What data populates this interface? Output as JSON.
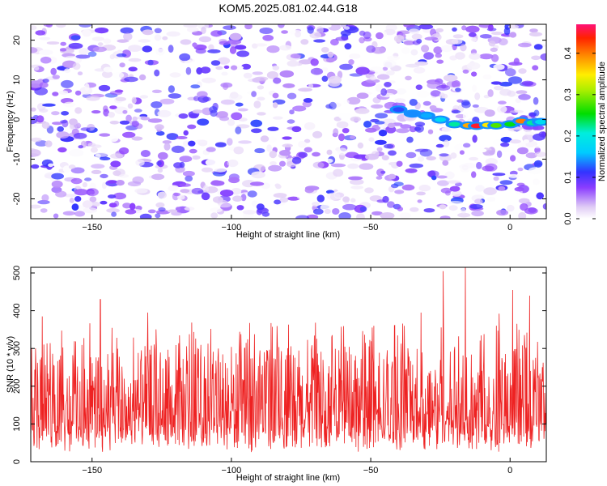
{
  "title": "KOM5.2025.081.02.44.G18",
  "chart_data": [
    {
      "type": "heatmap",
      "xlabel": "Height of straight line (km)",
      "ylabel": "Frequency (Hz)",
      "xlim": [
        -172,
        13
      ],
      "ylim": [
        -25,
        24
      ],
      "xticks": [
        -150,
        -100,
        -50,
        0
      ],
      "yticks": [
        -20,
        -10,
        0,
        10,
        20
      ],
      "colorbar": {
        "label": "Normalized spectral amplitude",
        "range": [
          0,
          0.47
        ],
        "ticks": [
          0.0,
          0.1,
          0.2,
          0.3,
          0.4
        ]
      },
      "signal_track": [
        {
          "x": -40,
          "y": 2.5,
          "amp": 0.12
        },
        {
          "x": -35,
          "y": 1.5,
          "amp": 0.14
        },
        {
          "x": -30,
          "y": 1.0,
          "amp": 0.15
        },
        {
          "x": -25,
          "y": 0.0,
          "amp": 0.18
        },
        {
          "x": -20,
          "y": -1.2,
          "amp": 0.22
        },
        {
          "x": -15,
          "y": -1.5,
          "amp": 0.38
        },
        {
          "x": -12,
          "y": -1.6,
          "amp": 0.45
        },
        {
          "x": -8,
          "y": -1.4,
          "amp": 0.35
        },
        {
          "x": -5,
          "y": -1.5,
          "amp": 0.28
        },
        {
          "x": 0,
          "y": -1.2,
          "amp": 0.25
        },
        {
          "x": 4,
          "y": -0.4,
          "amp": 0.4
        },
        {
          "x": 8,
          "y": -0.8,
          "amp": 0.22
        },
        {
          "x": 11,
          "y": -0.6,
          "amp": 0.18
        }
      ],
      "background_amplitude_range": [
        0.0,
        0.12
      ],
      "grid": false
    },
    {
      "type": "line",
      "xlabel": "Height of straight line (km)",
      "ylabel": "SNR (10 * v/v)",
      "xlim": [
        -172,
        13
      ],
      "ylim": [
        0,
        515
      ],
      "xticks": [
        -150,
        -100,
        -50,
        0
      ],
      "yticks": [
        0,
        100,
        200,
        300,
        400,
        500
      ],
      "color": "#ee2222",
      "baseline_mean": 170,
      "notable_peaks": [
        {
          "x": -168,
          "y": 385
        },
        {
          "x": -147,
          "y": 430
        },
        {
          "x": -130,
          "y": 395
        },
        {
          "x": -64,
          "y": 330
        },
        {
          "x": -32,
          "y": 395
        },
        {
          "x": -24,
          "y": 505
        },
        {
          "x": -16,
          "y": 515
        },
        {
          "x": -4,
          "y": 392
        },
        {
          "x": 1,
          "y": 455
        },
        {
          "x": 7,
          "y": 440
        }
      ],
      "grid": false
    }
  ]
}
